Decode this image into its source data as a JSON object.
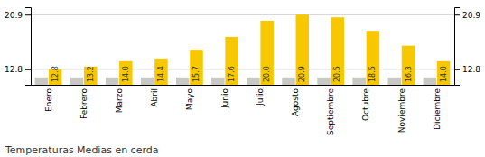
{
  "chart_data": {
    "type": "bar",
    "title": "Temperaturas Medias en cerda",
    "categories": [
      "Enero",
      "Febrero",
      "Marzo",
      "Abril",
      "Mayo",
      "Junio",
      "Julio",
      "Agosto",
      "Septiembre",
      "Octubre",
      "Noviembre",
      "Diciembre"
    ],
    "series": [
      {
        "color": "#C8C8C4",
        "values": [
          11.6,
          11.6,
          11.6,
          11.6,
          11.6,
          11.6,
          11.6,
          11.6,
          11.6,
          11.6,
          11.6,
          11.6
        ]
      },
      {
        "color": "#F7C800",
        "values": [
          12.8,
          13.2,
          14.0,
          14.4,
          15.7,
          17.6,
          20.0,
          20.9,
          20.5,
          18.5,
          16.3,
          14.0
        ],
        "data_labels": true,
        "value_labels": [
          "12.8",
          "13.2",
          "14.0",
          "14.4",
          "15.7",
          "17.6",
          "20.0",
          "20.9",
          "20.5",
          "18.5",
          "16.3",
          "14.0"
        ]
      }
    ],
    "ylim": [
      10.5,
      22.0
    ],
    "yticks": [
      12.8,
      20.9
    ],
    "y2lim": [
      10.5,
      22.0
    ],
    "y2ticks": [
      12.8,
      20.9
    ],
    "grid": true
  }
}
